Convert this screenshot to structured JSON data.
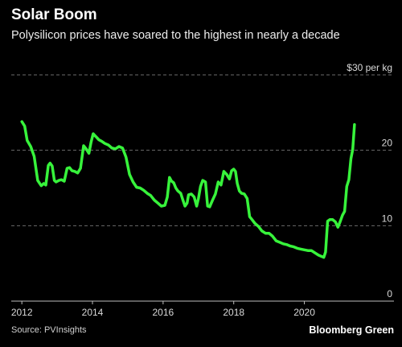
{
  "header": {
    "title": "Solar Boom",
    "subtitle": "Polysilicon prices have soared to the highest in nearly a decade"
  },
  "footer": {
    "source": "Source: PVInsights",
    "brand": "Bloomberg Green"
  },
  "colors": {
    "background": "#000000",
    "line": "#37f33b",
    "grid": "#6b6b6b"
  },
  "chart_data": {
    "type": "line",
    "title": "Solar Boom",
    "subtitle": "Polysilicon prices have soared to the highest in nearly a decade",
    "xlabel": "",
    "ylabel": "",
    "xlim": [
      2011.7,
      2021.9
    ],
    "ylim": [
      0,
      30
    ],
    "y_ticks": [
      0,
      10,
      20,
      30
    ],
    "y_tick_labels": [
      "0",
      "10",
      "20",
      "$30 per kg"
    ],
    "x_ticks": [
      2012,
      2014,
      2016,
      2018,
      2020
    ],
    "x_tick_labels": [
      "2012",
      "2014",
      "2016",
      "2018",
      "2020"
    ],
    "grid": true,
    "series": [
      {
        "x": [
          2012.0,
          2012.08,
          2012.15,
          2012.25,
          2012.35,
          2012.45,
          2012.55,
          2012.62,
          2012.68,
          2012.75,
          2012.8,
          2012.86,
          2012.92,
          2012.97,
          2013.05,
          2013.12,
          2013.2,
          2013.28,
          2013.35,
          2013.42,
          2013.5,
          2013.58,
          2013.66,
          2013.75,
          2013.82,
          2013.9,
          2013.96,
          2014.02,
          2014.08,
          2014.12,
          2014.18,
          2014.26,
          2014.35,
          2014.45,
          2014.55,
          2014.65,
          2014.75,
          2014.85,
          2014.95,
          2015.05,
          2015.15,
          2015.25,
          2015.35,
          2015.45,
          2015.55,
          2015.65,
          2015.75,
          2015.85,
          2015.95,
          2016.05,
          2016.12,
          2016.18,
          2016.24,
          2016.3,
          2016.36,
          2016.42,
          2016.5,
          2016.56,
          2016.62,
          2016.68,
          2016.72,
          2016.8,
          2016.88,
          2016.95,
          2017.0,
          2017.06,
          2017.12,
          2017.2,
          2017.26,
          2017.32,
          2017.4,
          2017.48,
          2017.56,
          2017.64,
          2017.72,
          2017.8,
          2017.88,
          2017.94,
          2018.0,
          2018.05,
          2018.1,
          2018.16,
          2018.22,
          2018.3,
          2018.38,
          2018.45,
          2018.52,
          2018.6,
          2018.7,
          2018.8,
          2018.9,
          2019.0,
          2019.1,
          2019.2,
          2019.3,
          2019.4,
          2019.5,
          2019.6,
          2019.7,
          2019.8,
          2019.9,
          2020.0,
          2020.1,
          2020.2,
          2020.3,
          2020.4,
          2020.5,
          2020.55,
          2020.6,
          2020.66,
          2020.72,
          2020.8,
          2020.88,
          2020.95,
          2021.02,
          2021.08,
          2021.14,
          2021.2,
          2021.26,
          2021.32,
          2021.37,
          2021.42
        ],
        "values": [
          23.8,
          23.2,
          21.3,
          20.5,
          19.2,
          16.0,
          15.3,
          15.6,
          15.4,
          18.0,
          18.3,
          17.9,
          16.0,
          15.8,
          16.0,
          16.1,
          15.9,
          17.6,
          17.7,
          17.3,
          17.2,
          17.0,
          17.6,
          20.6,
          20.2,
          19.6,
          21.1,
          22.2,
          21.9,
          21.7,
          21.4,
          21.2,
          20.9,
          20.7,
          20.3,
          20.2,
          20.5,
          20.3,
          19.1,
          16.8,
          15.8,
          15.1,
          15.0,
          14.7,
          14.3,
          14.0,
          13.4,
          13.0,
          12.6,
          12.7,
          13.8,
          16.4,
          15.9,
          15.7,
          15.0,
          14.6,
          14.3,
          13.4,
          12.6,
          13.0,
          14.1,
          14.2,
          13.8,
          12.6,
          13.6,
          15.2,
          16.0,
          15.8,
          12.6,
          12.5,
          13.4,
          14.2,
          15.8,
          15.4,
          17.2,
          16.8,
          16.2,
          17.3,
          17.5,
          17.2,
          15.6,
          14.6,
          14.3,
          14.2,
          13.6,
          11.2,
          10.8,
          10.3,
          9.9,
          9.3,
          9.0,
          9.0,
          8.6,
          8.0,
          7.8,
          7.6,
          7.5,
          7.3,
          7.2,
          7.0,
          6.9,
          6.8,
          6.7,
          6.7,
          6.4,
          6.1,
          5.9,
          5.8,
          6.5,
          10.6,
          10.8,
          10.8,
          10.5,
          9.8,
          10.6,
          11.4,
          11.9,
          15.2,
          16.1,
          18.9,
          20.1,
          23.4
        ]
      }
    ]
  }
}
